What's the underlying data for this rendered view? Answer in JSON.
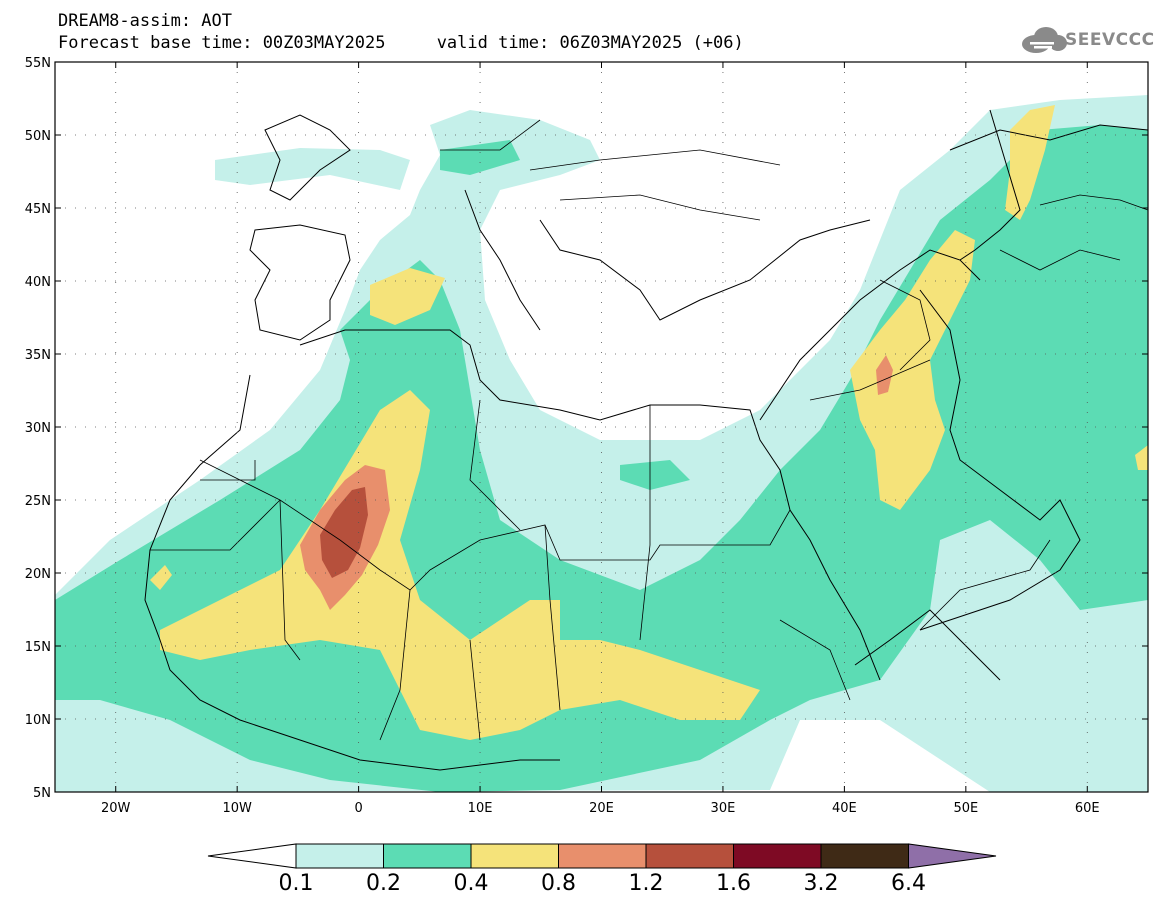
{
  "header": {
    "line1": "DREAM8-assim: AOT",
    "line2": "Forecast base time: 00Z03MAY2025     valid time: 06Z03MAY2025 (+06)"
  },
  "logo": {
    "text": "SEEVCCC",
    "icon": "cloud-icon"
  },
  "map": {
    "lon_range": [
      -25,
      65
    ],
    "lat_range": [
      5,
      55
    ],
    "lat_ticks": [
      {
        "v": 55,
        "label": "55N"
      },
      {
        "v": 50,
        "label": "50N"
      },
      {
        "v": 45,
        "label": "45N"
      },
      {
        "v": 40,
        "label": "40N"
      },
      {
        "v": 35,
        "label": "35N"
      },
      {
        "v": 30,
        "label": "30N"
      },
      {
        "v": 25,
        "label": "25N"
      },
      {
        "v": 20,
        "label": "20N"
      },
      {
        "v": 15,
        "label": "15N"
      },
      {
        "v": 10,
        "label": "10N"
      },
      {
        "v": 5,
        "label": "5N"
      }
    ],
    "lon_ticks": [
      {
        "v": -20,
        "label": "20W"
      },
      {
        "v": -10,
        "label": "10W"
      },
      {
        "v": 0,
        "label": "0"
      },
      {
        "v": 10,
        "label": "10E"
      },
      {
        "v": 20,
        "label": "20E"
      },
      {
        "v": 30,
        "label": "30E"
      },
      {
        "v": 40,
        "label": "40E"
      },
      {
        "v": 50,
        "label": "50E"
      },
      {
        "v": 60,
        "label": "60E"
      }
    ]
  },
  "colorbar": {
    "levels": [
      "0.1",
      "0.2",
      "0.4",
      "0.8",
      "1.2",
      "1.6",
      "3.2",
      "6.4"
    ],
    "colors": [
      "#c5f0ea",
      "#5cdcb4",
      "#f5e37a",
      "#e88f6c",
      "#b6503c",
      "#7e0a24",
      "#3f2a16",
      "#8f6fa8"
    ]
  }
}
